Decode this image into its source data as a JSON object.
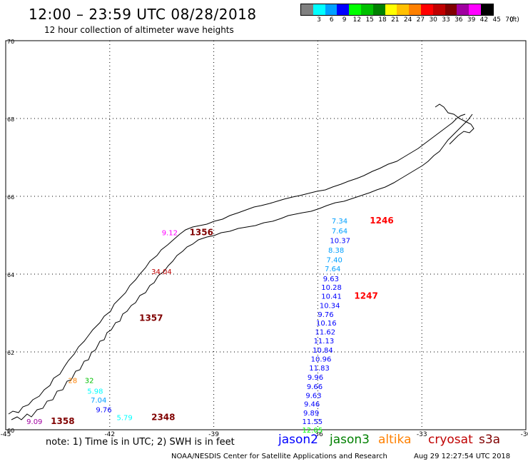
{
  "title": "12:00 – 23:59 UTC 08/28/2018",
  "subtitle": "12 hour collection of altimeter wave heights",
  "legend": {
    "unit": "(ft)",
    "bins": [
      {
        "label": "3",
        "color": "#808080"
      },
      {
        "label": "6",
        "color": "#00ffff"
      },
      {
        "label": "9",
        "color": "#00a0ff"
      },
      {
        "label": "12",
        "color": "#0000ff"
      },
      {
        "label": "15",
        "color": "#00ff00"
      },
      {
        "label": "18",
        "color": "#00c000"
      },
      {
        "label": "21",
        "color": "#008000"
      },
      {
        "label": "24",
        "color": "#ffff00"
      },
      {
        "label": "27",
        "color": "#ffc000"
      },
      {
        "label": "30",
        "color": "#ff8000"
      },
      {
        "label": "33",
        "color": "#ff0000"
      },
      {
        "label": "36",
        "color": "#c00000"
      },
      {
        "label": "39",
        "color": "#800000"
      },
      {
        "label": "42",
        "color": "#a000a0"
      },
      {
        "label": "45",
        "color": "#ff00ff"
      },
      {
        "label": "70",
        "color": "#000000"
      }
    ]
  },
  "map": {
    "lat_labels": [
      "70",
      "68",
      "66",
      "64",
      "62",
      "60"
    ],
    "lon_labels": [
      "-45",
      "-42",
      "-39",
      "-36",
      "-33",
      "-30"
    ],
    "lat_range": [
      60,
      70
    ],
    "lon_range": [
      -45,
      -30
    ]
  },
  "observations": [
    {
      "lon": -35.6,
      "lat": 65.3,
      "text": "7.34",
      "color": "#00a0ff"
    },
    {
      "lon": -35.6,
      "lat": 65.05,
      "text": "7.64",
      "color": "#00a0ff"
    },
    {
      "lon": -35.65,
      "lat": 64.8,
      "text": "10.37",
      "color": "#0000ff"
    },
    {
      "lon": -35.7,
      "lat": 64.55,
      "text": "8.38",
      "color": "#00a0ff"
    },
    {
      "lon": -35.75,
      "lat": 64.3,
      "text": "7.40",
      "color": "#00a0ff"
    },
    {
      "lon": -35.8,
      "lat": 64.07,
      "text": "7.64",
      "color": "#00a0ff"
    },
    {
      "lon": -35.85,
      "lat": 63.82,
      "text": "9.63",
      "color": "#0000ff"
    },
    {
      "lon": -35.9,
      "lat": 63.6,
      "text": "10.28",
      "color": "#0000ff"
    },
    {
      "lon": -35.9,
      "lat": 63.37,
      "text": "10.41",
      "color": "#0000ff"
    },
    {
      "lon": -35.95,
      "lat": 63.13,
      "text": "10.34",
      "color": "#0000ff"
    },
    {
      "lon": -36.0,
      "lat": 62.9,
      "text": "9.76",
      "color": "#0000ff"
    },
    {
      "lon": -36.05,
      "lat": 62.68,
      "text": "10.16",
      "color": "#0000ff"
    },
    {
      "lon": -36.08,
      "lat": 62.45,
      "text": "11.62",
      "color": "#0000ff"
    },
    {
      "lon": -36.12,
      "lat": 62.22,
      "text": "11.13",
      "color": "#0000ff"
    },
    {
      "lon": -36.15,
      "lat": 61.98,
      "text": "10.84",
      "color": "#0000ff"
    },
    {
      "lon": -36.2,
      "lat": 61.75,
      "text": "10.96",
      "color": "#0000ff"
    },
    {
      "lon": -36.25,
      "lat": 61.52,
      "text": "11.83",
      "color": "#0000ff"
    },
    {
      "lon": -36.3,
      "lat": 61.28,
      "text": "9.96",
      "color": "#0000ff"
    },
    {
      "lon": -36.32,
      "lat": 61.05,
      "text": "9.66",
      "color": "#0000ff"
    },
    {
      "lon": -36.35,
      "lat": 60.82,
      "text": "9.63",
      "color": "#0000ff"
    },
    {
      "lon": -36.4,
      "lat": 60.6,
      "text": "9.46",
      "color": "#0000ff"
    },
    {
      "lon": -36.42,
      "lat": 60.37,
      "text": "9.89",
      "color": "#0000ff"
    },
    {
      "lon": -36.45,
      "lat": 60.15,
      "text": "11.55",
      "color": "#0000ff"
    },
    {
      "lon": -36.45,
      "lat": 59.93,
      "text": "12.05",
      "color": "#00ff00"
    },
    {
      "lon": -34.5,
      "lat": 65.3,
      "text": "1246",
      "color": "#ff0000",
      "bold": true
    },
    {
      "lon": -34.95,
      "lat": 63.37,
      "text": "1247",
      "color": "#ff0000",
      "bold": true
    },
    {
      "lon": -40.5,
      "lat": 65.0,
      "text": "9.12",
      "color": "#ff00ff"
    },
    {
      "lon": -39.7,
      "lat": 65.0,
      "text": "1356",
      "color": "#800000",
      "bold": true
    },
    {
      "lon": -40.8,
      "lat": 64.0,
      "text": "34.04",
      "color": "#c00000"
    },
    {
      "lon": -41.15,
      "lat": 62.8,
      "text": "1357",
      "color": "#800000",
      "bold": true
    },
    {
      "lon": -43.2,
      "lat": 61.2,
      "text": "28",
      "color": "#ff8000"
    },
    {
      "lon": -42.72,
      "lat": 61.2,
      "text": "32",
      "color": "#00c000"
    },
    {
      "lon": -42.65,
      "lat": 60.93,
      "text": "5.98",
      "color": "#00ffff"
    },
    {
      "lon": -42.55,
      "lat": 60.7,
      "text": "7.04",
      "color": "#00a0ff"
    },
    {
      "lon": -42.4,
      "lat": 60.45,
      "text": "9.76",
      "color": "#0000ff"
    },
    {
      "lon": -41.8,
      "lat": 60.25,
      "text": "5.79",
      "color": "#00ffff"
    },
    {
      "lon": -40.8,
      "lat": 60.25,
      "text": "2348",
      "color": "#800000",
      "bold": true
    },
    {
      "lon": -43.7,
      "lat": 60.15,
      "text": "1358",
      "color": "#800000",
      "bold": true
    },
    {
      "lon": -44.4,
      "lat": 60.15,
      "text": "9.09",
      "color": "#a000a0"
    }
  ],
  "note": "note:  1) Time is in UTC;  2) SWH is in feet",
  "satellites": [
    {
      "name": "jason2",
      "color": "#0000ff"
    },
    {
      "name": "jason3",
      "color": "#008000"
    },
    {
      "name": "altika",
      "color": "#ff8000"
    },
    {
      "name": "cryosat",
      "color": "#c00000"
    },
    {
      "name": "s3a",
      "color": "#800000"
    }
  ],
  "credit": "NOAA/NESDIS Center for Satellite Applications and Research",
  "timestamp": "Aug 29 12:27:54 UTC 2018"
}
